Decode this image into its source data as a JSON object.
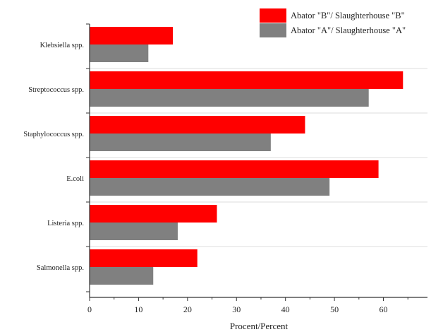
{
  "chart_data": {
    "type": "bar",
    "orientation": "horizontal",
    "categories": [
      "Klebsiella spp.",
      "Streptococcus spp.",
      "Staphylococcus spp.",
      "E.coli",
      "Listeria spp.",
      "Salmonella spp."
    ],
    "series": [
      {
        "name": "Abator \"B\"/ Slaughterhouse \"B\"",
        "color": "#ff0000",
        "values": [
          17,
          64,
          44,
          59,
          26,
          22
        ]
      },
      {
        "name": "Abator \"A\"/ Slaughterhouse \"A\"",
        "color": "#808080",
        "values": [
          12,
          57,
          37,
          49,
          18,
          13
        ]
      }
    ],
    "xlabel": "Procent/Percent",
    "ylabel": "",
    "title": "",
    "xlim": [
      0,
      69
    ],
    "xticks": [
      0,
      10,
      20,
      30,
      40,
      50,
      60
    ],
    "grid": "horizontal separators between categories",
    "legend_position": "top-right"
  }
}
